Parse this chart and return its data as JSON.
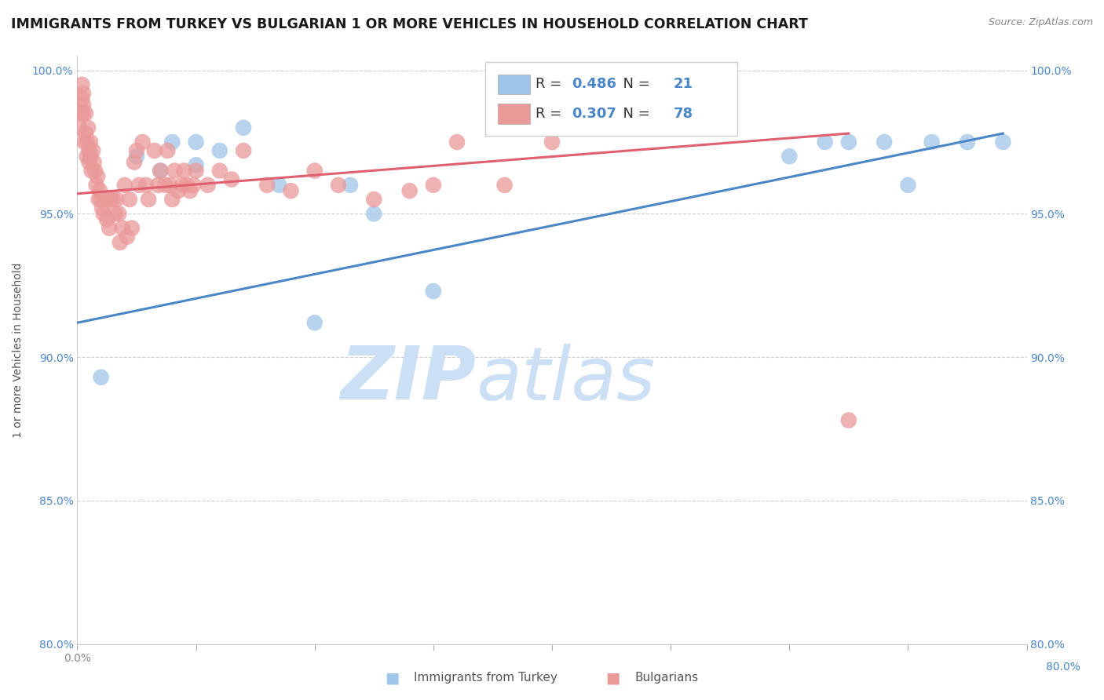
{
  "title": "IMMIGRANTS FROM TURKEY VS BULGARIAN 1 OR MORE VEHICLES IN HOUSEHOLD CORRELATION CHART",
  "source": "Source: ZipAtlas.com",
  "ylabel": "1 or more Vehicles in Household",
  "xlim": [
    0.0,
    0.8
  ],
  "ylim": [
    0.8,
    1.005
  ],
  "ytick_vals": [
    0.8,
    0.85,
    0.9,
    0.95,
    1.0
  ],
  "ytick_labels": [
    "80.0%",
    "85.0%",
    "90.0%",
    "95.0%",
    "100.0%"
  ],
  "legend_r_blue": "0.486",
  "legend_n_blue": "21",
  "legend_r_pink": "0.307",
  "legend_n_pink": "78",
  "blue_color": "#9fc5e8",
  "pink_color": "#ea9999",
  "blue_line_color": "#4a86c8",
  "pink_line_color": "#e06070",
  "blue_scatter_x": [
    0.02,
    0.05,
    0.07,
    0.08,
    0.1,
    0.1,
    0.12,
    0.14,
    0.17,
    0.2,
    0.23,
    0.25,
    0.3,
    0.6,
    0.63,
    0.65,
    0.68,
    0.7,
    0.72,
    0.75,
    0.78
  ],
  "blue_scatter_y": [
    0.893,
    0.97,
    0.965,
    0.975,
    0.967,
    0.975,
    0.972,
    0.98,
    0.96,
    0.912,
    0.96,
    0.95,
    0.923,
    0.97,
    0.975,
    0.975,
    0.975,
    0.96,
    0.975,
    0.975,
    0.975
  ],
  "pink_scatter_x": [
    0.002,
    0.003,
    0.004,
    0.004,
    0.005,
    0.005,
    0.005,
    0.006,
    0.007,
    0.007,
    0.008,
    0.008,
    0.009,
    0.01,
    0.01,
    0.011,
    0.011,
    0.012,
    0.013,
    0.014,
    0.015,
    0.016,
    0.017,
    0.018,
    0.019,
    0.02,
    0.021,
    0.022,
    0.024,
    0.025,
    0.027,
    0.028,
    0.03,
    0.032,
    0.033,
    0.035,
    0.036,
    0.038,
    0.04,
    0.042,
    0.044,
    0.046,
    0.048,
    0.05,
    0.052,
    0.055,
    0.058,
    0.06,
    0.065,
    0.068,
    0.07,
    0.074,
    0.076,
    0.078,
    0.08,
    0.082,
    0.085,
    0.088,
    0.09,
    0.092,
    0.095,
    0.098,
    0.1,
    0.11,
    0.12,
    0.13,
    0.14,
    0.16,
    0.18,
    0.2,
    0.22,
    0.25,
    0.28,
    0.3,
    0.32,
    0.36,
    0.4,
    0.65
  ],
  "pink_scatter_y": [
    0.98,
    0.985,
    0.99,
    0.995,
    0.985,
    0.988,
    0.992,
    0.975,
    0.978,
    0.985,
    0.97,
    0.975,
    0.98,
    0.968,
    0.972,
    0.97,
    0.975,
    0.965,
    0.972,
    0.968,
    0.965,
    0.96,
    0.963,
    0.955,
    0.958,
    0.955,
    0.952,
    0.95,
    0.955,
    0.948,
    0.945,
    0.955,
    0.955,
    0.95,
    0.955,
    0.95,
    0.94,
    0.945,
    0.96,
    0.942,
    0.955,
    0.945,
    0.968,
    0.972,
    0.96,
    0.975,
    0.96,
    0.955,
    0.972,
    0.96,
    0.965,
    0.96,
    0.972,
    0.96,
    0.955,
    0.965,
    0.958,
    0.96,
    0.965,
    0.96,
    0.958,
    0.96,
    0.965,
    0.96,
    0.965,
    0.962,
    0.972,
    0.96,
    0.958,
    0.965,
    0.96,
    0.955,
    0.958,
    0.96,
    0.975,
    0.96,
    0.975,
    0.878
  ],
  "blue_line_x": [
    0.0,
    0.78
  ],
  "blue_line_y": [
    0.912,
    0.978
  ],
  "pink_line_x": [
    0.0,
    0.65
  ],
  "pink_line_y": [
    0.957,
    0.978
  ],
  "background_color": "#ffffff",
  "watermark_zip": "ZIP",
  "watermark_atlas": "atlas",
  "watermark_color": "#cce0f5",
  "grid_color": "#d0d0d0",
  "title_fontsize": 12.5,
  "axis_label_fontsize": 10,
  "tick_fontsize": 10
}
